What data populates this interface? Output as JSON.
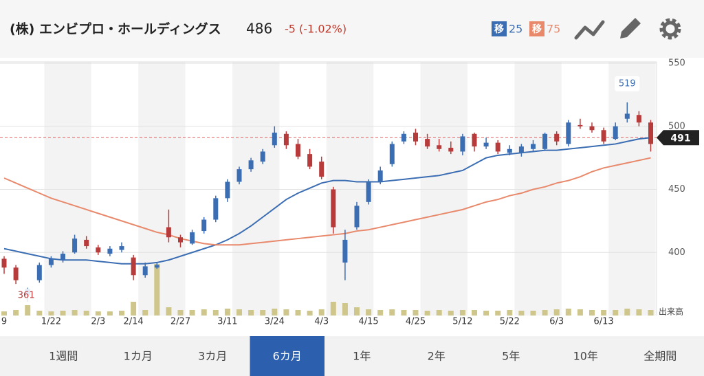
{
  "header": {
    "company": "(株) エンビプロ・ホールディングス",
    "price": "486",
    "change": "-5 (-1.02%)",
    "ma_badge": "移"
  },
  "chart_data": {
    "type": "candlestick",
    "categories": [
      "9",
      null,
      null,
      null,
      "1/22",
      null,
      null,
      null,
      "2/3",
      null,
      null,
      "2/14",
      null,
      null,
      null,
      "2/27",
      null,
      null,
      null,
      "3/11",
      null,
      null,
      null,
      "3/24",
      null,
      null,
      null,
      "4/3",
      null,
      null,
      null,
      "4/15",
      null,
      null,
      null,
      "4/25",
      null,
      null,
      null,
      "5/12",
      null,
      null,
      null,
      "5/22",
      null,
      null,
      null,
      "6/3",
      null,
      null,
      null,
      "6/13",
      null,
      null,
      null,
      null
    ],
    "candles": [
      [
        395,
        397,
        383,
        388
      ],
      [
        388,
        390,
        375,
        378
      ],
      [
        366,
        372,
        361,
        371
      ],
      [
        378,
        392,
        376,
        390
      ],
      [
        390,
        397,
        388,
        395
      ],
      [
        394,
        401,
        392,
        399
      ],
      [
        400,
        414,
        399,
        411
      ],
      [
        410,
        413,
        403,
        405
      ],
      [
        404,
        406,
        398,
        400
      ],
      [
        399,
        405,
        397,
        403
      ],
      [
        402,
        408,
        400,
        405
      ],
      [
        396,
        398,
        378,
        382
      ],
      [
        382,
        392,
        380,
        389
      ],
      [
        388,
        392,
        387,
        390
      ],
      [
        420,
        434,
        408,
        412
      ],
      [
        412,
        414,
        404,
        408
      ],
      [
        407,
        418,
        406,
        416
      ],
      [
        417,
        428,
        415,
        426
      ],
      [
        426,
        445,
        424,
        443
      ],
      [
        443,
        458,
        440,
        456
      ],
      [
        456,
        468,
        454,
        466
      ],
      [
        466,
        475,
        464,
        473
      ],
      [
        472,
        482,
        470,
        480
      ],
      [
        485,
        500,
        483,
        495
      ],
      [
        494,
        496,
        482,
        485
      ],
      [
        486,
        490,
        474,
        476
      ],
      [
        478,
        482,
        466,
        468
      ],
      [
        472,
        476,
        458,
        460
      ],
      [
        450,
        452,
        415,
        420
      ],
      [
        392,
        418,
        378,
        410
      ],
      [
        420,
        440,
        418,
        437
      ],
      [
        440,
        458,
        438,
        456
      ],
      [
        456,
        468,
        454,
        465
      ],
      [
        470,
        488,
        468,
        486
      ],
      [
        488,
        496,
        486,
        494
      ],
      [
        495,
        498,
        485,
        488
      ],
      [
        490,
        494,
        482,
        484
      ],
      [
        485,
        490,
        480,
        482
      ],
      [
        483,
        488,
        478,
        480
      ],
      [
        480,
        494,
        477,
        492
      ],
      [
        494,
        495,
        480,
        484
      ],
      [
        484,
        491,
        482,
        487
      ],
      [
        487,
        489,
        478,
        480
      ],
      [
        479,
        485,
        477,
        482
      ],
      [
        479,
        486,
        476,
        484
      ],
      [
        482,
        489,
        480,
        486
      ],
      [
        482,
        495,
        481,
        494
      ],
      [
        494,
        496,
        485,
        488
      ],
      [
        486,
        505,
        484,
        503
      ],
      [
        501,
        506,
        498,
        500
      ],
      [
        500,
        503,
        495,
        497
      ],
      [
        497,
        499,
        486,
        488
      ],
      [
        490,
        503,
        489,
        500
      ],
      [
        506,
        519,
        503,
        510
      ],
      [
        509,
        512,
        500,
        503
      ],
      [
        503,
        505,
        480,
        486
      ]
    ],
    "series": [
      {
        "name": "25",
        "color": "#3b6db3",
        "values": [
          403,
          401,
          399,
          397,
          395,
          394,
          394,
          394,
          393,
          392,
          391,
          391,
          391,
          392,
          394,
          397,
          400,
          403,
          406,
          410,
          415,
          421,
          428,
          435,
          442,
          447,
          451,
          455,
          457,
          457,
          456,
          456,
          456,
          457,
          458,
          459,
          460,
          461,
          463,
          465,
          470,
          475,
          477,
          478,
          479,
          480,
          481,
          481,
          482,
          483,
          484,
          485,
          486,
          488,
          490,
          491
        ]
      },
      {
        "name": "75",
        "color": "#e8896c",
        "values": [
          459,
          455,
          451,
          447,
          443,
          440,
          437,
          434,
          431,
          428,
          425,
          422,
          419,
          416,
          414,
          411,
          409,
          407,
          406,
          406,
          406,
          407,
          408,
          409,
          410,
          411,
          412,
          413,
          414,
          415,
          417,
          418,
          420,
          422,
          424,
          426,
          428,
          430,
          432,
          434,
          437,
          440,
          442,
          445,
          447,
          450,
          452,
          455,
          457,
          460,
          464,
          467,
          469,
          471,
          473,
          475
        ]
      }
    ],
    "volume": [
      6,
      8,
      15,
      7,
      6,
      7,
      8,
      7,
      6,
      6,
      7,
      20,
      8,
      75,
      12,
      8,
      8,
      9,
      8,
      10,
      9,
      8,
      8,
      10,
      9,
      8,
      7,
      9,
      20,
      18,
      12,
      9,
      8,
      9,
      8,
      8,
      7,
      8,
      7,
      8,
      8,
      7,
      7,
      8,
      7,
      7,
      8,
      9,
      10,
      9,
      8,
      8,
      8,
      10,
      9,
      8
    ],
    "volume_label": "出来高",
    "vlim": [
      0,
      100
    ],
    "volume_color": "#cfc68b",
    "up_color": "#3b6db3",
    "down_color": "#b83b3b",
    "ylim": [
      350,
      550
    ],
    "yticks": [
      400,
      450,
      500,
      550
    ],
    "grid": true,
    "prev_close": 491,
    "high_index": 53,
    "low_index": 2
  },
  "tabs": [
    "1週間",
    "1カ月",
    "3カ月",
    "6カ月",
    "1年",
    "2年",
    "5年",
    "10年",
    "全期間"
  ],
  "active_tab": 3
}
